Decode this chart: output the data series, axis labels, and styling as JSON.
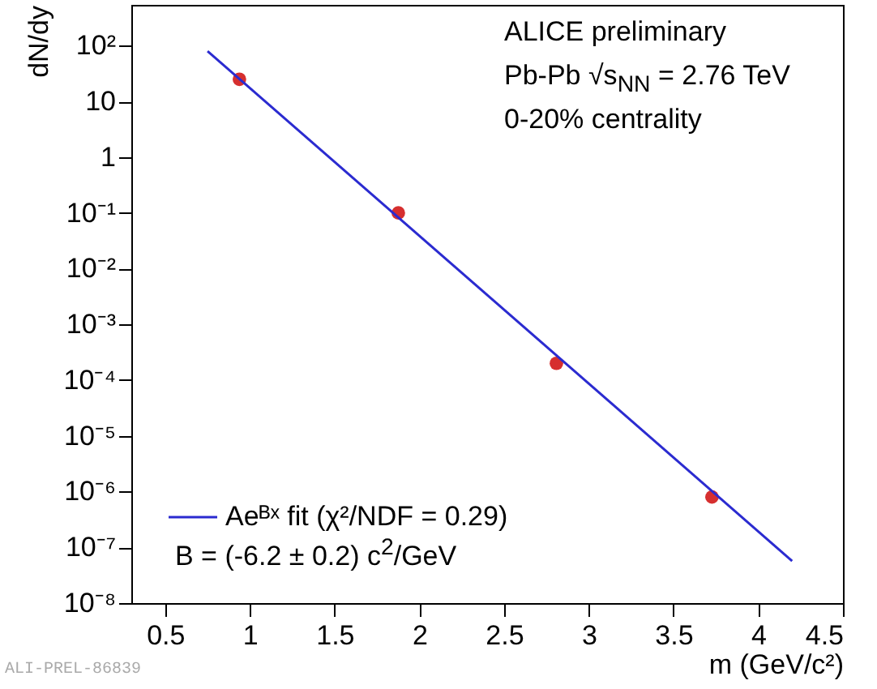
{
  "chart_data": {
    "type": "scatter",
    "xlabel": "m (GeV/c²)",
    "ylabel": "dN/dy",
    "x": [
      0.938,
      1.876,
      2.809,
      3.727
    ],
    "series": [
      {
        "color": "#d62f2f",
        "marker": "circle",
        "values": [
          25,
          0.1,
          0.0002,
          8e-07
        ]
      },
      {
        "type": "line",
        "marker": "none",
        "name": "Aeᴮˣ fit (χ²/NDF = 0.29)",
        "color": "#2b2bd0",
        "x": [
          0.75,
          4.2
        ],
        "values": [
          80,
          5.7e-08
        ]
      }
    ],
    "log": "y",
    "line_style": "solid",
    "legend": "bottom left",
    "xlim": [
      0.3,
      4.5
    ],
    "xticks": [
      0.5,
      1,
      1.5,
      2,
      2.5,
      3,
      3.5,
      4,
      4.5
    ],
    "ylim": [
      1e-08,
      540
    ],
    "yticks": [
      {
        "value": 1e-08,
        "label": "10⁻⁸"
      },
      {
        "value": 1e-07,
        "label": "10⁻⁷"
      },
      {
        "value": 1e-06,
        "label": "10⁻⁶"
      },
      {
        "value": 1e-05,
        "label": "10⁻⁵"
      },
      {
        "value": 0.0001,
        "label": "10⁻⁴"
      },
      {
        "value": 0.001,
        "label": "10⁻³"
      },
      {
        "value": 0.01,
        "label": "10⁻²"
      },
      {
        "value": 0.1,
        "label": "10⁻¹"
      },
      1,
      10,
      {
        "value": 100,
        "label": "10²"
      }
    ],
    "annotations": [
      "ALICE preliminary",
      "Pb-Pb √s$_{NN}$ = 2.76 TeV",
      "0-20% centrality",
      "B = (-6.2 ± 0.2) c$^{2}$/GeV",
      "ALI-PREL-86839"
    ]
  }
}
